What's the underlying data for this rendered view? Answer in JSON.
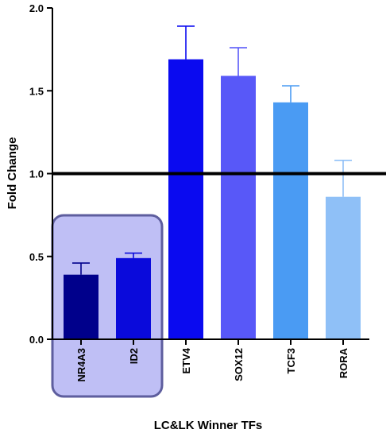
{
  "chart_data": {
    "type": "bar",
    "xlabel": "LC&LK Winner TFs",
    "ylabel": "Fold Change",
    "ylim": [
      0,
      2.0
    ],
    "yticks": [
      "0.0",
      "0.5",
      "1.0",
      "1.5",
      "2.0"
    ],
    "categories": [
      "NR4A3",
      "ID2",
      "ETV4",
      "SOX12",
      "TCF3",
      "RORA"
    ],
    "values": [
      0.39,
      0.49,
      1.69,
      1.59,
      1.43,
      0.86
    ],
    "error_upper": [
      0.07,
      0.03,
      0.2,
      0.17,
      0.1,
      0.22
    ],
    "bar_colors": [
      "#00008B",
      "#0A0ADB",
      "#0A0AF0",
      "#5858F8",
      "#4A9BF3",
      "#8FC0F7"
    ],
    "reference_line": {
      "y": 1.0,
      "color": "#000000"
    },
    "highlight_box": {
      "categories": [
        "NR4A3",
        "ID2"
      ],
      "fill": "#BFBFF5",
      "stroke": "#5E5E9E"
    },
    "grid": false,
    "legend": "none"
  }
}
